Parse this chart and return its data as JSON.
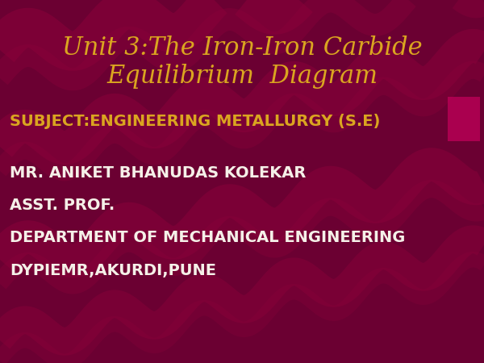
{
  "title_line1": "Unit 3:The Iron-Iron Carbide",
  "title_line2": "Equilibrium  Diagram",
  "title_color": "#DAA520",
  "title_fontsize": 22,
  "subject_line": "SUBJECT:ENGINEERING METALLURGY (S.E)",
  "subject_color": "#DAA520",
  "subject_fontsize": 14,
  "body_lines": [
    "MR. ANIKET BHANUDAS KOLEKAR",
    "ASST. PROF.",
    "DEPARTMENT OF MECHANICAL ENGINEERING",
    "DYPIEMR,AKURDI,PUNE"
  ],
  "body_color": "#F5F0E8",
  "body_fontsize": 14,
  "bg_color": "#6B0032",
  "wave_color": "#8B003A",
  "figsize": [
    6.0,
    4.5
  ],
  "dpi": 100
}
